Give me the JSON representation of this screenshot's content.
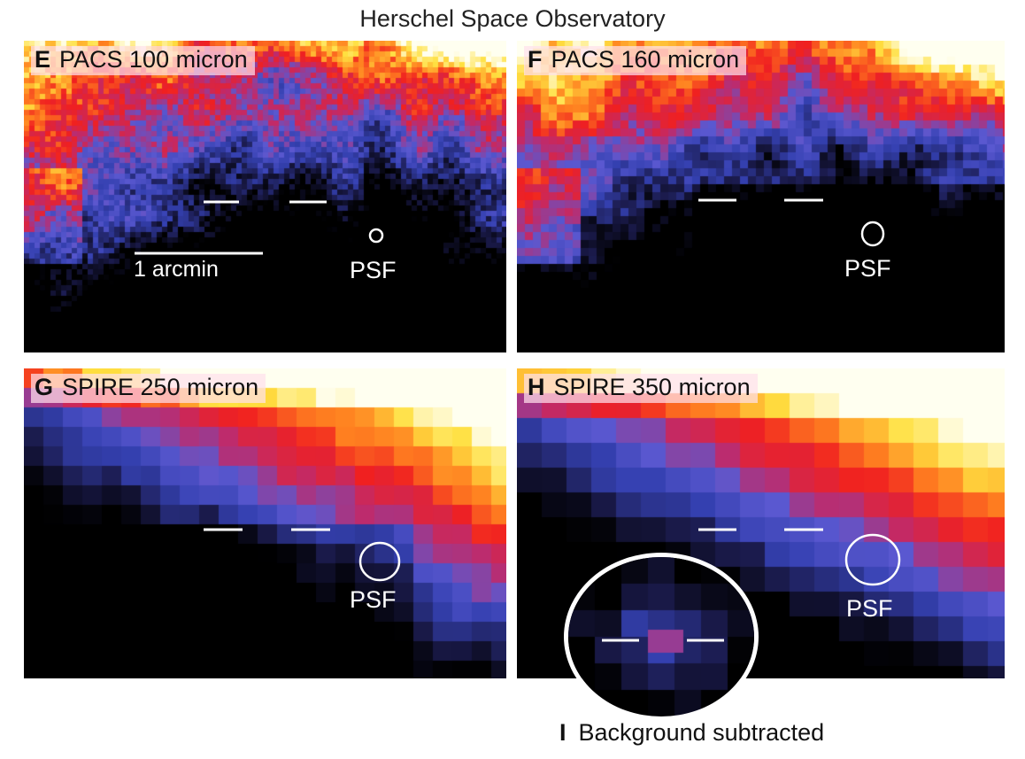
{
  "figure": {
    "title": "Herschel Space Observatory",
    "panels": [
      {
        "letter": "E",
        "label": "PACS 100 micron",
        "psf_label": "PSF",
        "scale_label": "1 arcmin"
      },
      {
        "letter": "F",
        "label": "PACS 160 micron",
        "psf_label": "PSF"
      },
      {
        "letter": "G",
        "label": "SPIRE 250 micron",
        "psf_label": "PSF"
      },
      {
        "letter": "H",
        "label": "SPIRE 350 micron",
        "psf_label": "PSF"
      }
    ],
    "inset": {
      "letter": "I",
      "label": "Background subtracted"
    }
  },
  "colors": {
    "colormap": [
      "#000000",
      "#1a1a4a",
      "#3440b0",
      "#5a58d0",
      "#c02a6a",
      "#f02020",
      "#ff8020",
      "#ffe040",
      "#fffff0"
    ],
    "annotation": "#ffffff"
  }
}
